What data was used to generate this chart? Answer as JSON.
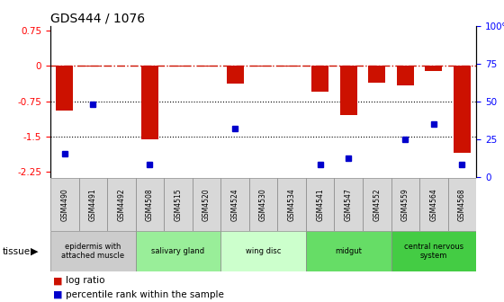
{
  "title": "GDS444 / 1076",
  "samples": [
    "GSM4490",
    "GSM4491",
    "GSM4492",
    "GSM4508",
    "GSM4515",
    "GSM4520",
    "GSM4524",
    "GSM4530",
    "GSM4534",
    "GSM4541",
    "GSM4547",
    "GSM4552",
    "GSM4559",
    "GSM4564",
    "GSM4568"
  ],
  "log_ratio": [
    -0.95,
    -0.02,
    0.0,
    -1.55,
    -0.02,
    -0.02,
    -0.38,
    -0.02,
    -0.02,
    -0.55,
    -1.05,
    -0.35,
    -0.42,
    -0.12,
    -1.85
  ],
  "percentile": [
    15,
    48,
    0,
    8,
    0,
    0,
    32,
    0,
    0,
    8,
    12,
    0,
    25,
    35,
    8
  ],
  "ylim_left": [
    -2.35,
    0.85
  ],
  "ylim_right": [
    0,
    100
  ],
  "yticks_left": [
    -2.25,
    -1.5,
    -0.75,
    0,
    0.75
  ],
  "yticks_right": [
    0,
    25,
    50,
    75,
    100
  ],
  "bar_color": "#cc1100",
  "dot_color": "#0000cc",
  "tissue_groups": [
    {
      "label": "epidermis with\nattached muscle",
      "samples_idx": [
        0,
        1,
        2
      ],
      "color": "#cccccc"
    },
    {
      "label": "salivary gland",
      "samples_idx": [
        3,
        4,
        5
      ],
      "color": "#99ee99"
    },
    {
      "label": "wing disc",
      "samples_idx": [
        6,
        7,
        8
      ],
      "color": "#ccffcc"
    },
    {
      "label": "midgut",
      "samples_idx": [
        9,
        10,
        11
      ],
      "color": "#66dd66"
    },
    {
      "label": "central nervous\nsystem",
      "samples_idx": [
        12,
        13,
        14
      ],
      "color": "#44cc44"
    }
  ]
}
